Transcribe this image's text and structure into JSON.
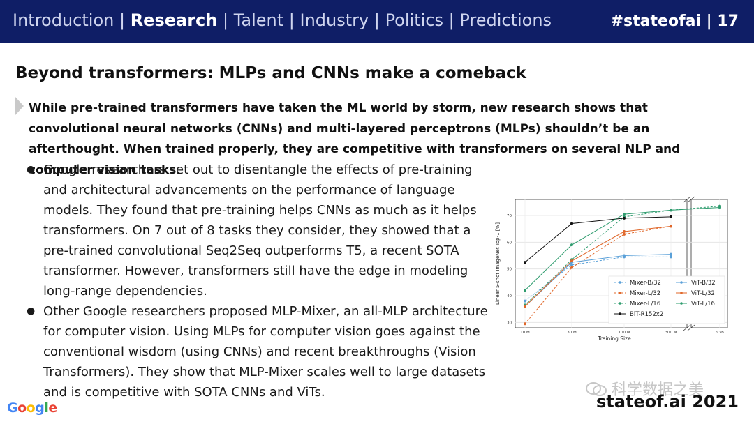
{
  "header": {
    "nav": [
      {
        "label": "Introduction",
        "active": false
      },
      {
        "label": "Research",
        "active": true
      },
      {
        "label": "Talent",
        "active": false
      },
      {
        "label": "Industry",
        "active": false
      },
      {
        "label": "Politics",
        "active": false
      },
      {
        "label": "Predictions",
        "active": false
      }
    ],
    "badge": "#stateofai | 17",
    "bg_color": "#0f1e66"
  },
  "title": "Beyond transformers: MLPs and CNNs make a comeback",
  "lead": "While pre-trained transformers have taken the ML world by storm, new research shows that convolutional neural networks (CNNs) and multi-layered perceptrons (MLPs) shouldn’t be an afterthought. When trained properly, they are competitive with transformers on several NLP and computer vision tasks.",
  "bullets": [
    "Google researchers set out to disentangle the effects of pre-training and architectural advancements on the performance of language models. They found that pre-training helps CNNs as much as it helps transformers. On 7 out of 8 tasks they consider, they showed that a pre-trained convolutional Seq2Seq outperforms T5, a recent SOTA transformer. However, transformers still have the edge in modeling long-range dependencies.",
    "Other Google researchers proposed MLP-Mixer, an all-MLP architecture for computer vision. Using MLPs for computer vision goes against the conventional wisdom (using CNNs) and recent breakthroughs (Vision Transformers). They show that MLP-Mixer scales well to large datasets and is competitive with SOTA CNNs and ViTs."
  ],
  "bullet_glyph": "●",
  "chart_data": {
    "type": "line",
    "xlabel": "Training Size",
    "ylabel": "Linear 5-shot ImageNet Top-1 [%]",
    "x": [
      "10 M",
      "30 M",
      "100 M",
      "300 M",
      "~3B"
    ],
    "yticks": [
      30,
      40,
      50,
      60,
      70
    ],
    "ylim": [
      28,
      76
    ],
    "legend_position": "lower-right",
    "series": [
      {
        "name": "Mixer-B/32",
        "color": "#5aa0d8",
        "dashed": true,
        "values": [
          38,
          51.5,
          54.5,
          54.5,
          null
        ]
      },
      {
        "name": "Mixer-L/32",
        "color": "#e0672a",
        "dashed": true,
        "values": [
          29.5,
          50.5,
          63,
          66,
          null
        ]
      },
      {
        "name": "Mixer-L/16",
        "color": "#2e9c6e",
        "dashed": true,
        "values": [
          36.5,
          53.5,
          69.5,
          72,
          73.5
        ]
      },
      {
        "name": "BiT-R152x2",
        "color": "#111111",
        "dashed": false,
        "values": [
          52.5,
          67,
          69,
          69.5,
          null
        ]
      },
      {
        "name": "ViT-B/32",
        "color": "#5aa0d8",
        "dashed": false,
        "values": [
          36,
          52.5,
          55,
          55.5,
          null
        ]
      },
      {
        "name": "ViT-L/32",
        "color": "#e0672a",
        "dashed": false,
        "values": [
          36,
          53,
          64,
          66,
          null
        ]
      },
      {
        "name": "ViT-L/16",
        "color": "#2e9c6e",
        "dashed": false,
        "values": [
          42,
          59,
          70.5,
          72,
          73
        ]
      }
    ]
  },
  "footer": {
    "logo_letters": [
      "G",
      "o",
      "o",
      "g",
      "l",
      "e"
    ],
    "watermark": "科学数据之美",
    "site": "stateof.ai 2021"
  }
}
